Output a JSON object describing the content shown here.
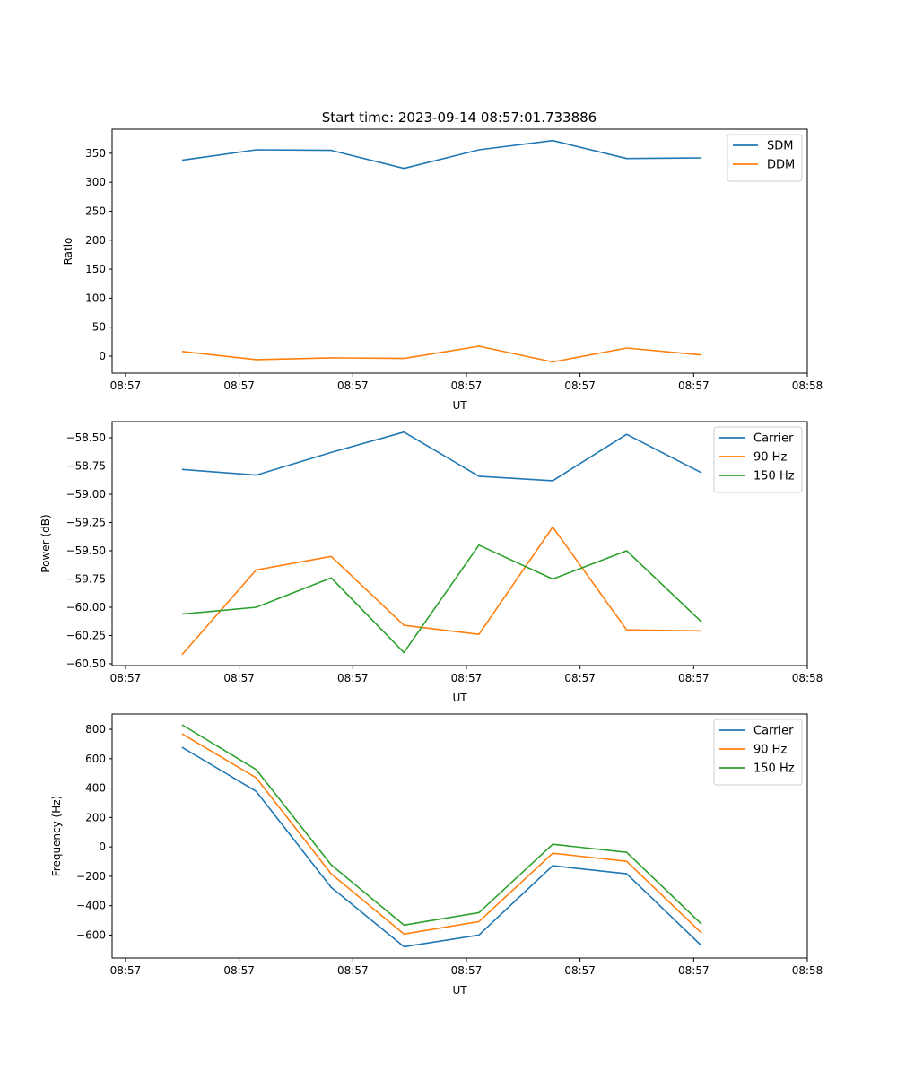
{
  "title": "Start time: 2023-09-14 08:57:01.733886",
  "colors": {
    "blue": "#1f77b4",
    "orange": "#ff7f0e",
    "green": "#2ca02c"
  },
  "chart_data": [
    {
      "type": "line",
      "xlabel": "UT",
      "ylabel": "Ratio",
      "x": [
        4.97,
        11.5,
        18.1,
        24.5,
        31.1,
        37.6,
        44.1,
        50.7
      ],
      "xlim": [
        -1.18,
        60
      ],
      "x_ticks": [
        0,
        10,
        20,
        30,
        40,
        50,
        60
      ],
      "x_tick_labels": [
        "08:57",
        "08:57",
        "08:57",
        "08:57",
        "08:57",
        "08:57",
        "08:58"
      ],
      "ylim": [
        -29.4,
        391.6
      ],
      "y_ticks": [
        0,
        50,
        100,
        150,
        200,
        250,
        300,
        350
      ],
      "y_tick_labels": [
        "0",
        "50",
        "100",
        "150",
        "200",
        "250",
        "300",
        "350"
      ],
      "legend": "top-right",
      "grid": false,
      "series": [
        {
          "name": "SDM",
          "color": "#1f77b4",
          "values": [
            338,
            356,
            355,
            324,
            356,
            372,
            341,
            342
          ]
        },
        {
          "name": "DDM",
          "color": "#ff7f0e",
          "values": [
            8,
            -6,
            -3,
            -4,
            17,
            -10,
            14,
            2
          ]
        }
      ]
    },
    {
      "type": "line",
      "xlabel": "UT",
      "ylabel": "Power (dB)",
      "x": [
        4.97,
        11.5,
        18.1,
        24.5,
        31.1,
        37.6,
        44.1,
        50.7
      ],
      "xlim": [
        -1.18,
        60
      ],
      "x_ticks": [
        0,
        10,
        20,
        30,
        40,
        50,
        60
      ],
      "x_tick_labels": [
        "08:57",
        "08:57",
        "08:57",
        "08:57",
        "08:57",
        "08:57",
        "08:58"
      ],
      "ylim": [
        -60.516,
        -58.357
      ],
      "y_ticks": [
        -58.5,
        -58.75,
        -59.0,
        -59.25,
        -59.5,
        -59.75,
        -60.0,
        -60.25,
        -60.5
      ],
      "y_tick_labels": [
        "−58.50",
        "−58.75",
        "−59.00",
        "−59.25",
        "−59.50",
        "−59.75",
        "−60.00",
        "−60.25",
        "−60.50"
      ],
      "legend": "top-right",
      "grid": false,
      "series": [
        {
          "name": "Carrier",
          "color": "#1f77b4",
          "values": [
            -58.78,
            -58.83,
            -58.63,
            -58.45,
            -58.84,
            -58.88,
            -58.47,
            -58.81
          ]
        },
        {
          "name": "90 Hz",
          "color": "#ff7f0e",
          "values": [
            -60.42,
            -59.67,
            -59.55,
            -60.16,
            -60.24,
            -59.29,
            -60.2,
            -60.21
          ]
        },
        {
          "name": "150 Hz",
          "color": "#2ca02c",
          "values": [
            -60.06,
            -60.0,
            -59.74,
            -60.4,
            -59.45,
            -59.75,
            -59.5,
            -60.13
          ]
        }
      ]
    },
    {
      "type": "line",
      "xlabel": "UT",
      "ylabel": "Frequency (Hz)",
      "x": [
        4.97,
        11.5,
        18.1,
        24.5,
        31.1,
        37.6,
        44.1,
        50.7
      ],
      "xlim": [
        -1.18,
        60
      ],
      "x_ticks": [
        0,
        10,
        20,
        30,
        40,
        50,
        60
      ],
      "x_tick_labels": [
        "08:57",
        "08:57",
        "08:57",
        "08:57",
        "08:57",
        "08:57",
        "08:58"
      ],
      "ylim": [
        -756,
        904
      ],
      "y_ticks": [
        800,
        600,
        400,
        200,
        0,
        -200,
        -400,
        -600
      ],
      "y_tick_labels": [
        "800",
        "600",
        "400",
        "200",
        "0",
        "−200",
        "−400",
        "−600"
      ],
      "legend": "top-right",
      "grid": false,
      "series": [
        {
          "name": "Carrier",
          "color": "#1f77b4",
          "values": [
            678,
            378,
            -275,
            -679,
            -600,
            -128,
            -183,
            -673
          ]
        },
        {
          "name": "90 Hz",
          "color": "#ff7f0e",
          "values": [
            769,
            470,
            -183,
            -593,
            -508,
            -43,
            -98,
            -587
          ]
        },
        {
          "name": "150 Hz",
          "color": "#2ca02c",
          "values": [
            831,
            526,
            -122,
            -532,
            -447,
            18,
            -37,
            -526
          ]
        }
      ]
    }
  ]
}
